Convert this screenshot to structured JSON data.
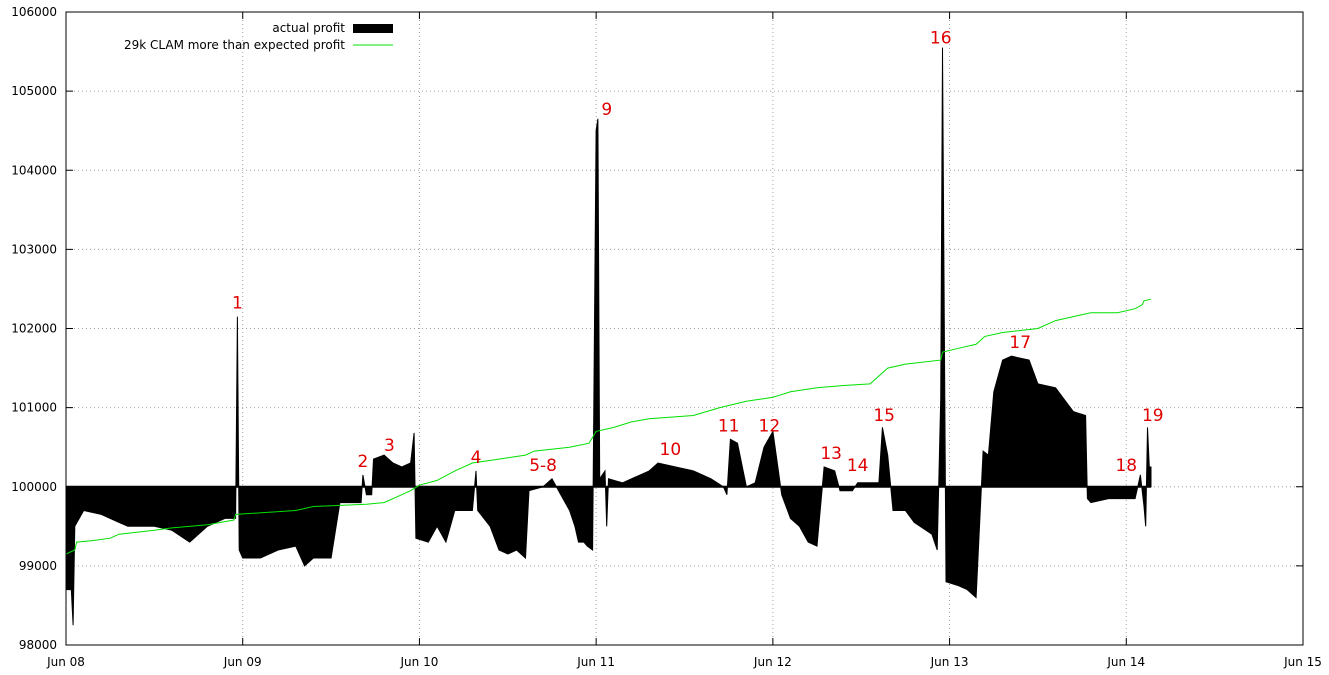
{
  "chart_data": {
    "type": "area",
    "title": "",
    "xlabel": "",
    "ylabel": "",
    "baseline": 100000,
    "ylim": [
      98000,
      106000
    ],
    "xlim": [
      0,
      7
    ],
    "grid": true,
    "legend_position": "top-left",
    "x_unit": "days since Jun 08",
    "xticks": [
      {
        "x": 0,
        "label": "Jun 08"
      },
      {
        "x": 1,
        "label": "Jun 09"
      },
      {
        "x": 2,
        "label": "Jun 10"
      },
      {
        "x": 3,
        "label": "Jun 11"
      },
      {
        "x": 4,
        "label": "Jun 12"
      },
      {
        "x": 5,
        "label": "Jun 13"
      },
      {
        "x": 6,
        "label": "Jun 14"
      },
      {
        "x": 7,
        "label": "Jun 15"
      }
    ],
    "yticks": [
      98000,
      99000,
      100000,
      101000,
      102000,
      103000,
      104000,
      105000,
      106000
    ],
    "series": [
      {
        "name": "actual profit",
        "style": "filled-to-baseline",
        "color": "#000000",
        "points": [
          [
            0.0,
            98700
          ],
          [
            0.03,
            98700
          ],
          [
            0.04,
            98250
          ],
          [
            0.05,
            99500
          ],
          [
            0.1,
            99700
          ],
          [
            0.2,
            99650
          ],
          [
            0.3,
            99550
          ],
          [
            0.35,
            99500
          ],
          [
            0.4,
            99500
          ],
          [
            0.5,
            99500
          ],
          [
            0.6,
            99450
          ],
          [
            0.7,
            99300
          ],
          [
            0.8,
            99500
          ],
          [
            0.9,
            99600
          ],
          [
            0.96,
            99600
          ],
          [
            0.97,
            102150
          ],
          [
            0.98,
            99200
          ],
          [
            1.0,
            99100
          ],
          [
            1.1,
            99100
          ],
          [
            1.2,
            99200
          ],
          [
            1.3,
            99250
          ],
          [
            1.35,
            99000
          ],
          [
            1.4,
            99100
          ],
          [
            1.5,
            99100
          ],
          [
            1.55,
            99800
          ],
          [
            1.6,
            99800
          ],
          [
            1.67,
            99800
          ],
          [
            1.68,
            100150
          ],
          [
            1.7,
            99900
          ],
          [
            1.73,
            99900
          ],
          [
            1.74,
            100350
          ],
          [
            1.8,
            100400
          ],
          [
            1.85,
            100300
          ],
          [
            1.9,
            100250
          ],
          [
            1.95,
            100300
          ],
          [
            1.97,
            100680
          ],
          [
            1.98,
            99350
          ],
          [
            2.05,
            99300
          ],
          [
            2.1,
            99500
          ],
          [
            2.15,
            99300
          ],
          [
            2.2,
            99700
          ],
          [
            2.3,
            99700
          ],
          [
            2.32,
            100200
          ],
          [
            2.33,
            99700
          ],
          [
            2.4,
            99500
          ],
          [
            2.45,
            99200
          ],
          [
            2.5,
            99150
          ],
          [
            2.55,
            99200
          ],
          [
            2.6,
            99100
          ],
          [
            2.62,
            99950
          ],
          [
            2.7,
            100000
          ],
          [
            2.75,
            100100
          ],
          [
            2.8,
            99900
          ],
          [
            2.85,
            99700
          ],
          [
            2.88,
            99500
          ],
          [
            2.9,
            99300
          ],
          [
            2.93,
            99300
          ],
          [
            2.95,
            99250
          ],
          [
            2.98,
            99200
          ],
          [
            3.0,
            104500
          ],
          [
            3.01,
            104650
          ],
          [
            3.02,
            100100
          ],
          [
            3.05,
            100200
          ],
          [
            3.06,
            99500
          ],
          [
            3.07,
            100100
          ],
          [
            3.15,
            100050
          ],
          [
            3.2,
            100100
          ],
          [
            3.3,
            100200
          ],
          [
            3.35,
            100300
          ],
          [
            3.45,
            100250
          ],
          [
            3.55,
            100200
          ],
          [
            3.65,
            100100
          ],
          [
            3.72,
            100000
          ],
          [
            3.74,
            99900
          ],
          [
            3.76,
            100600
          ],
          [
            3.8,
            100550
          ],
          [
            3.85,
            100000
          ],
          [
            3.9,
            100050
          ],
          [
            3.95,
            100500
          ],
          [
            4.0,
            100700
          ],
          [
            4.05,
            99900
          ],
          [
            4.1,
            99600
          ],
          [
            4.15,
            99500
          ],
          [
            4.2,
            99300
          ],
          [
            4.25,
            99250
          ],
          [
            4.29,
            100250
          ],
          [
            4.35,
            100200
          ],
          [
            4.38,
            99950
          ],
          [
            4.45,
            99950
          ],
          [
            4.48,
            100050
          ],
          [
            4.55,
            100050
          ],
          [
            4.6,
            100050
          ],
          [
            4.62,
            100750
          ],
          [
            4.65,
            100400
          ],
          [
            4.68,
            99700
          ],
          [
            4.75,
            99700
          ],
          [
            4.8,
            99550
          ],
          [
            4.9,
            99400
          ],
          [
            4.93,
            99200
          ],
          [
            4.95,
            101100
          ],
          [
            4.96,
            105550
          ],
          [
            4.98,
            98800
          ],
          [
            5.05,
            98750
          ],
          [
            5.1,
            98700
          ],
          [
            5.15,
            98600
          ],
          [
            5.19,
            100450
          ],
          [
            5.22,
            100400
          ],
          [
            5.25,
            101200
          ],
          [
            5.3,
            101600
          ],
          [
            5.35,
            101650
          ],
          [
            5.45,
            101600
          ],
          [
            5.5,
            101300
          ],
          [
            5.6,
            101250
          ],
          [
            5.65,
            101100
          ],
          [
            5.7,
            100950
          ],
          [
            5.77,
            100900
          ],
          [
            5.78,
            99850
          ],
          [
            5.8,
            99800
          ],
          [
            5.9,
            99850
          ],
          [
            6.0,
            99850
          ],
          [
            6.05,
            99850
          ],
          [
            6.08,
            100150
          ],
          [
            6.1,
            99750
          ],
          [
            6.11,
            99500
          ],
          [
            6.12,
            100750
          ],
          [
            6.13,
            100250
          ],
          [
            6.14,
            100250
          ]
        ]
      },
      {
        "name": "29k CLAM more than expected profit",
        "style": "line",
        "color": "#00e000",
        "points": [
          [
            0.0,
            99150
          ],
          [
            0.05,
            99200
          ],
          [
            0.06,
            99300
          ],
          [
            0.15,
            99320
          ],
          [
            0.25,
            99350
          ],
          [
            0.3,
            99400
          ],
          [
            0.5,
            99450
          ],
          [
            0.6,
            99480
          ],
          [
            0.8,
            99520
          ],
          [
            0.95,
            99580
          ],
          [
            0.96,
            99650
          ],
          [
            1.3,
            99700
          ],
          [
            1.4,
            99750
          ],
          [
            1.7,
            99780
          ],
          [
            1.8,
            99800
          ],
          [
            1.9,
            99900
          ],
          [
            1.95,
            99950
          ],
          [
            2.0,
            100020
          ],
          [
            2.1,
            100080
          ],
          [
            2.2,
            100200
          ],
          [
            2.3,
            100300
          ],
          [
            2.45,
            100350
          ],
          [
            2.6,
            100400
          ],
          [
            2.65,
            100450
          ],
          [
            2.85,
            100500
          ],
          [
            2.96,
            100550
          ],
          [
            3.0,
            100700
          ],
          [
            3.1,
            100750
          ],
          [
            3.2,
            100820
          ],
          [
            3.3,
            100860
          ],
          [
            3.55,
            100900
          ],
          [
            3.7,
            101000
          ],
          [
            3.85,
            101080
          ],
          [
            4.0,
            101130
          ],
          [
            4.1,
            101200
          ],
          [
            4.25,
            101250
          ],
          [
            4.4,
            101280
          ],
          [
            4.55,
            101300
          ],
          [
            4.6,
            101400
          ],
          [
            4.65,
            101500
          ],
          [
            4.75,
            101550
          ],
          [
            4.95,
            101600
          ],
          [
            4.96,
            101700
          ],
          [
            5.05,
            101750
          ],
          [
            5.15,
            101800
          ],
          [
            5.2,
            101900
          ],
          [
            5.3,
            101950
          ],
          [
            5.5,
            102000
          ],
          [
            5.6,
            102100
          ],
          [
            5.7,
            102150
          ],
          [
            5.8,
            102200
          ],
          [
            5.95,
            102200
          ],
          [
            6.05,
            102250
          ],
          [
            6.09,
            102300
          ],
          [
            6.1,
            102350
          ],
          [
            6.14,
            102370
          ]
        ]
      }
    ],
    "annotations": [
      {
        "label": "1",
        "x": 0.97,
        "y": 102200
      },
      {
        "label": "2",
        "x": 1.68,
        "y": 100200
      },
      {
        "label": "3",
        "x": 1.83,
        "y": 100400
      },
      {
        "label": "4",
        "x": 2.32,
        "y": 100250
      },
      {
        "label": "5-8",
        "x": 2.7,
        "y": 100150
      },
      {
        "label": "9",
        "x": 3.06,
        "y": 104650
      },
      {
        "label": "10",
        "x": 3.42,
        "y": 100350
      },
      {
        "label": "11",
        "x": 3.75,
        "y": 100650
      },
      {
        "label": "12",
        "x": 3.98,
        "y": 100650
      },
      {
        "label": "13",
        "x": 4.33,
        "y": 100300
      },
      {
        "label": "14",
        "x": 4.48,
        "y": 100150
      },
      {
        "label": "15",
        "x": 4.63,
        "y": 100780
      },
      {
        "label": "16",
        "x": 4.95,
        "y": 105550
      },
      {
        "label": "17",
        "x": 5.4,
        "y": 101700
      },
      {
        "label": "18",
        "x": 6.0,
        "y": 100150
      },
      {
        "label": "19",
        "x": 6.15,
        "y": 100780
      }
    ]
  }
}
